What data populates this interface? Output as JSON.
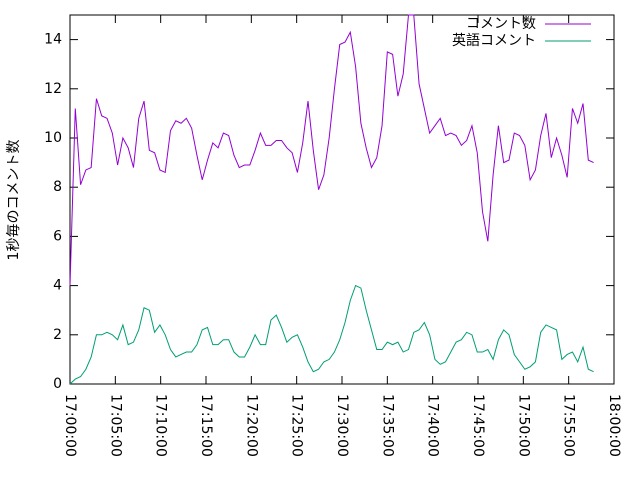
{
  "chart_data": {
    "type": "line",
    "y_label": "1秒毎のコメント数",
    "x": [
      "17:00:00",
      "17:00:35",
      "17:01:10",
      "17:01:45",
      "17:02:20",
      "17:02:55",
      "17:03:30",
      "17:04:05",
      "17:04:40",
      "17:05:15",
      "17:05:50",
      "17:06:25",
      "17:07:00",
      "17:07:35",
      "17:08:10",
      "17:08:45",
      "17:09:20",
      "17:09:55",
      "17:10:30",
      "17:11:05",
      "17:11:40",
      "17:12:15",
      "17:12:50",
      "17:13:25",
      "17:14:00",
      "17:14:35",
      "17:15:10",
      "17:15:45",
      "17:16:20",
      "17:16:55",
      "17:17:30",
      "17:18:05",
      "17:18:40",
      "17:19:15",
      "17:19:50",
      "17:20:25",
      "17:21:00",
      "17:21:35",
      "17:22:10",
      "17:22:45",
      "17:23:20",
      "17:23:55",
      "17:24:30",
      "17:25:05",
      "17:25:40",
      "17:26:15",
      "17:26:50",
      "17:27:25",
      "17:28:00",
      "17:28:35",
      "17:29:10",
      "17:29:45",
      "17:30:20",
      "17:30:55",
      "17:31:30",
      "17:32:05",
      "17:32:40",
      "17:33:15",
      "17:33:50",
      "17:34:25",
      "17:35:00",
      "17:35:35",
      "17:36:10",
      "17:36:45",
      "17:37:20",
      "17:37:55",
      "17:38:30",
      "17:39:05",
      "17:39:40",
      "17:40:15",
      "17:40:50",
      "17:41:25",
      "17:42:00",
      "17:42:35",
      "17:43:10",
      "17:43:45",
      "17:44:20",
      "17:44:55",
      "17:45:30",
      "17:46:05",
      "17:46:40",
      "17:47:15",
      "17:47:50",
      "17:48:25",
      "17:49:00",
      "17:49:35",
      "17:50:10",
      "17:50:45",
      "17:51:20",
      "17:51:55",
      "17:52:30",
      "17:53:05",
      "17:53:40",
      "17:54:15",
      "17:54:50",
      "17:55:25",
      "17:56:00",
      "17:56:35",
      "17:57:10",
      "17:57:45"
    ],
    "xlim": [
      "17:00:00",
      "18:00:00"
    ],
    "xticks": [
      "17:00:00",
      "17:05:00",
      "17:10:00",
      "17:15:00",
      "17:20:00",
      "17:25:00",
      "17:30:00",
      "17:35:00",
      "17:40:00",
      "17:45:00",
      "17:50:00",
      "17:55:00",
      "18:00:00"
    ],
    "ylim": [
      0,
      15
    ],
    "yticks": [
      0,
      2,
      4,
      6,
      8,
      10,
      12,
      14
    ],
    "legend": "top-right",
    "series": [
      {
        "name": "コメント数",
        "color": "#9400d3",
        "values": [
          4.0,
          11.2,
          8.1,
          8.7,
          8.8,
          11.6,
          10.9,
          10.8,
          10.2,
          8.9,
          10.0,
          9.6,
          8.8,
          10.8,
          11.5,
          9.5,
          9.4,
          8.7,
          8.6,
          10.3,
          10.7,
          10.6,
          10.8,
          10.4,
          9.3,
          8.3,
          9.1,
          9.8,
          9.6,
          10.2,
          10.1,
          9.3,
          8.8,
          8.9,
          8.9,
          9.5,
          10.2,
          9.7,
          9.7,
          9.9,
          9.9,
          9.6,
          9.4,
          8.6,
          9.8,
          11.5,
          9.5,
          7.9,
          8.5,
          10.0,
          12.0,
          13.8,
          13.9,
          14.3,
          12.9,
          10.6,
          9.6,
          8.8,
          9.2,
          10.5,
          13.5,
          13.4,
          11.7,
          12.6,
          15.0,
          15.0,
          12.2,
          11.2,
          10.2,
          10.5,
          10.8,
          10.1,
          10.2,
          10.1,
          9.7,
          9.9,
          10.5,
          9.4,
          7.0,
          5.8,
          8.5,
          10.5,
          9.0,
          9.1,
          10.2,
          10.1,
          9.7,
          8.3,
          8.7,
          10.1,
          11.0,
          9.2,
          10.0,
          9.3,
          8.4,
          11.2,
          10.6,
          11.4,
          9.1,
          9.0
        ]
      },
      {
        "name": "英語コメント",
        "color": "#009e73",
        "values": [
          0.0,
          0.2,
          0.3,
          0.6,
          1.1,
          2.0,
          2.0,
          2.1,
          2.0,
          1.8,
          2.4,
          1.6,
          1.7,
          2.2,
          3.1,
          3.0,
          2.1,
          2.4,
          2.0,
          1.4,
          1.1,
          1.2,
          1.3,
          1.3,
          1.6,
          2.2,
          2.3,
          1.6,
          1.6,
          1.8,
          1.8,
          1.3,
          1.1,
          1.1,
          1.5,
          2.0,
          1.6,
          1.6,
          2.6,
          2.8,
          2.3,
          1.7,
          1.9,
          2.0,
          1.5,
          0.9,
          0.5,
          0.6,
          0.9,
          1.0,
          1.3,
          1.8,
          2.5,
          3.4,
          4.0,
          3.9,
          3.0,
          2.2,
          1.4,
          1.4,
          1.7,
          1.6,
          1.7,
          1.3,
          1.4,
          2.1,
          2.2,
          2.5,
          2.0,
          1.0,
          0.8,
          0.9,
          1.3,
          1.7,
          1.8,
          2.1,
          2.0,
          1.3,
          1.3,
          1.4,
          1.0,
          1.8,
          2.2,
          2.0,
          1.2,
          0.9,
          0.6,
          0.7,
          0.9,
          2.1,
          2.4,
          2.3,
          2.2,
          1.0,
          1.2,
          1.3,
          0.9,
          1.5,
          0.6,
          0.5
        ]
      }
    ]
  }
}
